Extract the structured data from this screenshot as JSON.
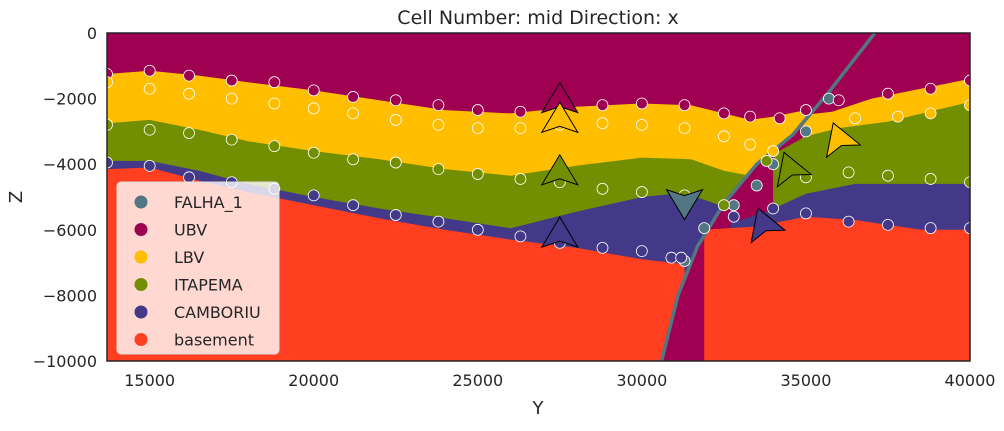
{
  "chart_data": {
    "type": "geological-section",
    "title": "Cell Number: mid Direction: x",
    "xlabel": "Y",
    "ylabel": "Z",
    "xlim": [
      13700,
      40000
    ],
    "ylim": [
      -10000,
      0
    ],
    "xticks": [
      "15000",
      "20000",
      "25000",
      "30000",
      "35000",
      "40000"
    ],
    "yticks": [
      "0",
      "−2000",
      "−4000",
      "−6000",
      "−8000",
      "−10000"
    ],
    "xtick_values": [
      15000,
      20000,
      25000,
      30000,
      35000,
      40000
    ],
    "ytick_values": [
      0,
      -2000,
      -4000,
      -6000,
      -8000,
      -10000
    ],
    "grid": false,
    "legend_position": "lower-left",
    "legend": [
      {
        "name": "FALHA_1",
        "color": "#527682"
      },
      {
        "name": "UBV",
        "color": "#9f0052"
      },
      {
        "name": "LBV",
        "color": "#ffbe00"
      },
      {
        "name": "ITAPEMA",
        "color": "#728f02"
      },
      {
        "name": "CAMBORIU",
        "color": "#443988"
      },
      {
        "name": "basement",
        "color": "#ff3f20"
      }
    ],
    "fault_line": [
      [
        30600,
        -10000
      ],
      [
        31100,
        -8000
      ],
      [
        31700,
        -6500
      ],
      [
        32500,
        -5200
      ],
      [
        33500,
        -4000
      ],
      [
        34600,
        -3100
      ],
      [
        35700,
        -1800
      ],
      [
        37100,
        0
      ]
    ],
    "boundaries": {
      "UBV_LBV": {
        "left": [
          [
            13700,
            -1250
          ],
          [
            15000,
            -1150
          ],
          [
            16500,
            -1300
          ],
          [
            18000,
            -1500
          ],
          [
            20000,
            -1750
          ],
          [
            22000,
            -2050
          ],
          [
            24000,
            -2350
          ],
          [
            26000,
            -2450
          ],
          [
            28000,
            -2250
          ],
          [
            30000,
            -2150
          ],
          [
            31500,
            -2200
          ],
          [
            32500,
            -2450
          ],
          [
            33300,
            -2650
          ],
          [
            34000,
            -2550
          ],
          [
            35000,
            -2350
          ]
        ],
        "right": [
          [
            34900,
            -2500
          ],
          [
            35800,
            -2400
          ],
          [
            37000,
            -2000
          ],
          [
            38500,
            -1700
          ],
          [
            40000,
            -1400
          ]
        ]
      },
      "LBV_ITAPEMA": {
        "left": [
          [
            13700,
            -2750
          ],
          [
            15000,
            -2650
          ],
          [
            16500,
            -2950
          ],
          [
            18000,
            -3300
          ],
          [
            20000,
            -3600
          ],
          [
            22000,
            -3850
          ],
          [
            24000,
            -4150
          ],
          [
            26000,
            -4350
          ],
          [
            28000,
            -4050
          ],
          [
            30000,
            -3800
          ],
          [
            31500,
            -3850
          ],
          [
            32500,
            -4200
          ],
          [
            33300,
            -4350
          ]
        ],
        "right": [
          [
            34000,
            -3700
          ],
          [
            35000,
            -3150
          ],
          [
            36000,
            -2900
          ],
          [
            37500,
            -2700
          ],
          [
            40000,
            -2100
          ]
        ]
      },
      "ITAPEMA_CAMBORIU": {
        "left": [
          [
            13700,
            -3900
          ],
          [
            15000,
            -3900
          ],
          [
            16500,
            -4200
          ],
          [
            18000,
            -4600
          ],
          [
            20000,
            -5000
          ],
          [
            22000,
            -5350
          ],
          [
            24000,
            -5650
          ],
          [
            26000,
            -5950
          ],
          [
            28000,
            -5450
          ],
          [
            30000,
            -5000
          ],
          [
            31000,
            -4900
          ],
          [
            31800,
            -5050
          ],
          [
            32500,
            -5300
          ]
        ],
        "right": [
          [
            32700,
            -5800
          ],
          [
            33800,
            -5450
          ],
          [
            35000,
            -4900
          ],
          [
            36500,
            -4600
          ],
          [
            38500,
            -4600
          ],
          [
            40000,
            -4600
          ]
        ]
      },
      "CAMBORIU_basement": {
        "left": [
          [
            13700,
            -4150
          ],
          [
            15000,
            -4100
          ],
          [
            16500,
            -4500
          ],
          [
            18000,
            -4850
          ],
          [
            20000,
            -5250
          ],
          [
            22000,
            -5650
          ],
          [
            24000,
            -6000
          ],
          [
            26000,
            -6300
          ],
          [
            28000,
            -6550
          ],
          [
            30000,
            -6900
          ],
          [
            31300,
            -7050
          ]
        ],
        "right": [
          [
            31900,
            -6000
          ],
          [
            33500,
            -5900
          ],
          [
            35000,
            -5600
          ],
          [
            36500,
            -5700
          ],
          [
            38500,
            -6000
          ],
          [
            40000,
            -6000
          ]
        ]
      }
    },
    "surface_points": [
      {
        "series": "FALHA_1",
        "points": [
          [
            31300,
            -6950
          ],
          [
            31900,
            -5950
          ],
          [
            32800,
            -5250
          ],
          [
            33500,
            -4650
          ],
          [
            34000,
            -4000
          ],
          [
            35000,
            -3000
          ],
          [
            35700,
            -2000
          ]
        ]
      },
      {
        "series": "UBV",
        "points": [
          [
            13700,
            -1250
          ],
          [
            15000,
            -1150
          ],
          [
            16200,
            -1300
          ],
          [
            17500,
            -1450
          ],
          [
            18800,
            -1500
          ],
          [
            20000,
            -1750
          ],
          [
            21200,
            -1950
          ],
          [
            22500,
            -2050
          ],
          [
            23800,
            -2200
          ],
          [
            25000,
            -2350
          ],
          [
            26300,
            -2400
          ],
          [
            27500,
            -2300
          ],
          [
            28800,
            -2200
          ],
          [
            30000,
            -2150
          ],
          [
            31300,
            -2200
          ],
          [
            32500,
            -2450
          ],
          [
            33300,
            -2550
          ],
          [
            34200,
            -2600
          ],
          [
            35000,
            -2350
          ],
          [
            36000,
            -2050
          ],
          [
            37500,
            -1850
          ],
          [
            38800,
            -1700
          ],
          [
            40000,
            -1450
          ]
        ]
      },
      {
        "series": "LBV",
        "points": [
          [
            13700,
            -1500
          ],
          [
            15000,
            -1700
          ],
          [
            16200,
            -1850
          ],
          [
            17500,
            -2000
          ],
          [
            18800,
            -2150
          ],
          [
            20000,
            -2300
          ],
          [
            21200,
            -2450
          ],
          [
            22500,
            -2650
          ],
          [
            23800,
            -2800
          ],
          [
            25000,
            -2900
          ],
          [
            26300,
            -2900
          ],
          [
            27500,
            -2800
          ],
          [
            28800,
            -2750
          ],
          [
            30000,
            -2800
          ],
          [
            31300,
            -2900
          ],
          [
            32500,
            -3150
          ],
          [
            33300,
            -3400
          ],
          [
            34000,
            -3600
          ],
          [
            36500,
            -2600
          ],
          [
            37800,
            -2550
          ],
          [
            38800,
            -2450
          ],
          [
            40000,
            -2200
          ]
        ]
      },
      {
        "series": "ITAPEMA",
        "points": [
          [
            13700,
            -2800
          ],
          [
            15000,
            -2950
          ],
          [
            16200,
            -3050
          ],
          [
            17500,
            -3250
          ],
          [
            18800,
            -3450
          ],
          [
            20000,
            -3650
          ],
          [
            21200,
            -3850
          ],
          [
            22500,
            -3950
          ],
          [
            23800,
            -4150
          ],
          [
            25000,
            -4300
          ],
          [
            26300,
            -4450
          ],
          [
            27500,
            -4550
          ],
          [
            28800,
            -4750
          ],
          [
            30000,
            -4850
          ],
          [
            31300,
            -4950
          ],
          [
            32500,
            -5250
          ],
          [
            33800,
            -3900
          ],
          [
            35000,
            -4400
          ],
          [
            36300,
            -4250
          ],
          [
            37500,
            -4350
          ],
          [
            38800,
            -4450
          ],
          [
            40000,
            -4550
          ]
        ]
      },
      {
        "series": "CAMBORIU",
        "points": [
          [
            13700,
            -3950
          ],
          [
            15000,
            -4050
          ],
          [
            16200,
            -4400
          ],
          [
            17500,
            -4550
          ],
          [
            18800,
            -4750
          ],
          [
            20000,
            -4950
          ],
          [
            21200,
            -5250
          ],
          [
            22500,
            -5550
          ],
          [
            23800,
            -5750
          ],
          [
            25000,
            -6000
          ],
          [
            26300,
            -6200
          ],
          [
            27500,
            -6400
          ],
          [
            28800,
            -6550
          ],
          [
            30000,
            -6650
          ],
          [
            30900,
            -6850
          ],
          [
            31200,
            -6850
          ],
          [
            32800,
            -5600
          ],
          [
            34000,
            -5350
          ],
          [
            35000,
            -5500
          ],
          [
            36300,
            -5750
          ],
          [
            37500,
            -5850
          ],
          [
            38800,
            -5950
          ],
          [
            40000,
            -5950
          ]
        ]
      }
    ],
    "orientations": [
      {
        "x": 27500,
        "z": -2000,
        "direction": "up",
        "series": "UBV"
      },
      {
        "x": 27500,
        "z": -2600,
        "direction": "up",
        "series": "LBV"
      },
      {
        "x": 27500,
        "z": -4200,
        "direction": "up",
        "series": "ITAPEMA"
      },
      {
        "x": 27500,
        "z": -6100,
        "direction": "up",
        "series": "CAMBORIU"
      },
      {
        "x": 31300,
        "z": -5200,
        "direction": "down",
        "series": "FALHA_1"
      },
      {
        "x": 34500,
        "z": -4100,
        "direction": "up-left",
        "series": "ITAPEMA"
      },
      {
        "x": 33700,
        "z": -5800,
        "direction": "up-left",
        "series": "CAMBORIU"
      },
      {
        "x": 36000,
        "z": -3200,
        "direction": "up-left",
        "series": "LBV"
      }
    ]
  }
}
